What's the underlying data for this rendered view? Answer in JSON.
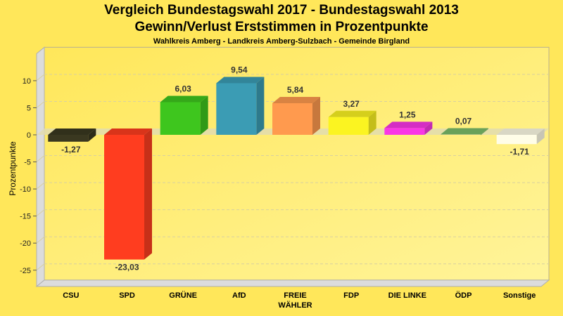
{
  "chart_data": {
    "type": "bar",
    "title": "Vergleich Bundestagswahl 2017 - Bundestagswahl 2013",
    "subtitle": "Gewinn/Verlust Erststimmen in Prozentpunkte",
    "subsubtitle": "Wahlkreis Amberg - Landkreis Amberg-Sulzbach - Gemeinde Birgland",
    "xlabel": "",
    "ylabel": "Prozentpunkte",
    "ylim": [
      -28,
      15
    ],
    "yticks": [
      10,
      5,
      0,
      -5,
      -10,
      -15,
      -20,
      -25
    ],
    "grid": true,
    "categories": [
      "CSU",
      "SPD",
      "GRÜNE",
      "AfD",
      "FREIE WÄHLER",
      "FDP",
      "DIE LINKE",
      "ÖDP",
      "Sonstige"
    ],
    "category_lines": [
      [
        "CSU"
      ],
      [
        "SPD"
      ],
      [
        "GRÜNE"
      ],
      [
        "AfD"
      ],
      [
        "FREIE",
        "WÄHLER"
      ],
      [
        "FDP"
      ],
      [
        "DIE LINKE"
      ],
      [
        "ÖDP"
      ],
      [
        "Sonstige"
      ]
    ],
    "values": [
      -1.27,
      -23.03,
      6.03,
      9.54,
      5.84,
      3.27,
      1.25,
      0.07,
      -1.71
    ],
    "value_labels": [
      "-1,27",
      "-23,03",
      "6,03",
      "9,54",
      "5,84",
      "3,27",
      "1,25",
      "0,07",
      "-1,71"
    ],
    "colors": [
      "#3a3820",
      "#ff3d1f",
      "#3ec61e",
      "#3b9cb4",
      "#ff9a4e",
      "#fbf421",
      "#f936e6",
      "#7cbd6a",
      "#fffde8"
    ]
  }
}
